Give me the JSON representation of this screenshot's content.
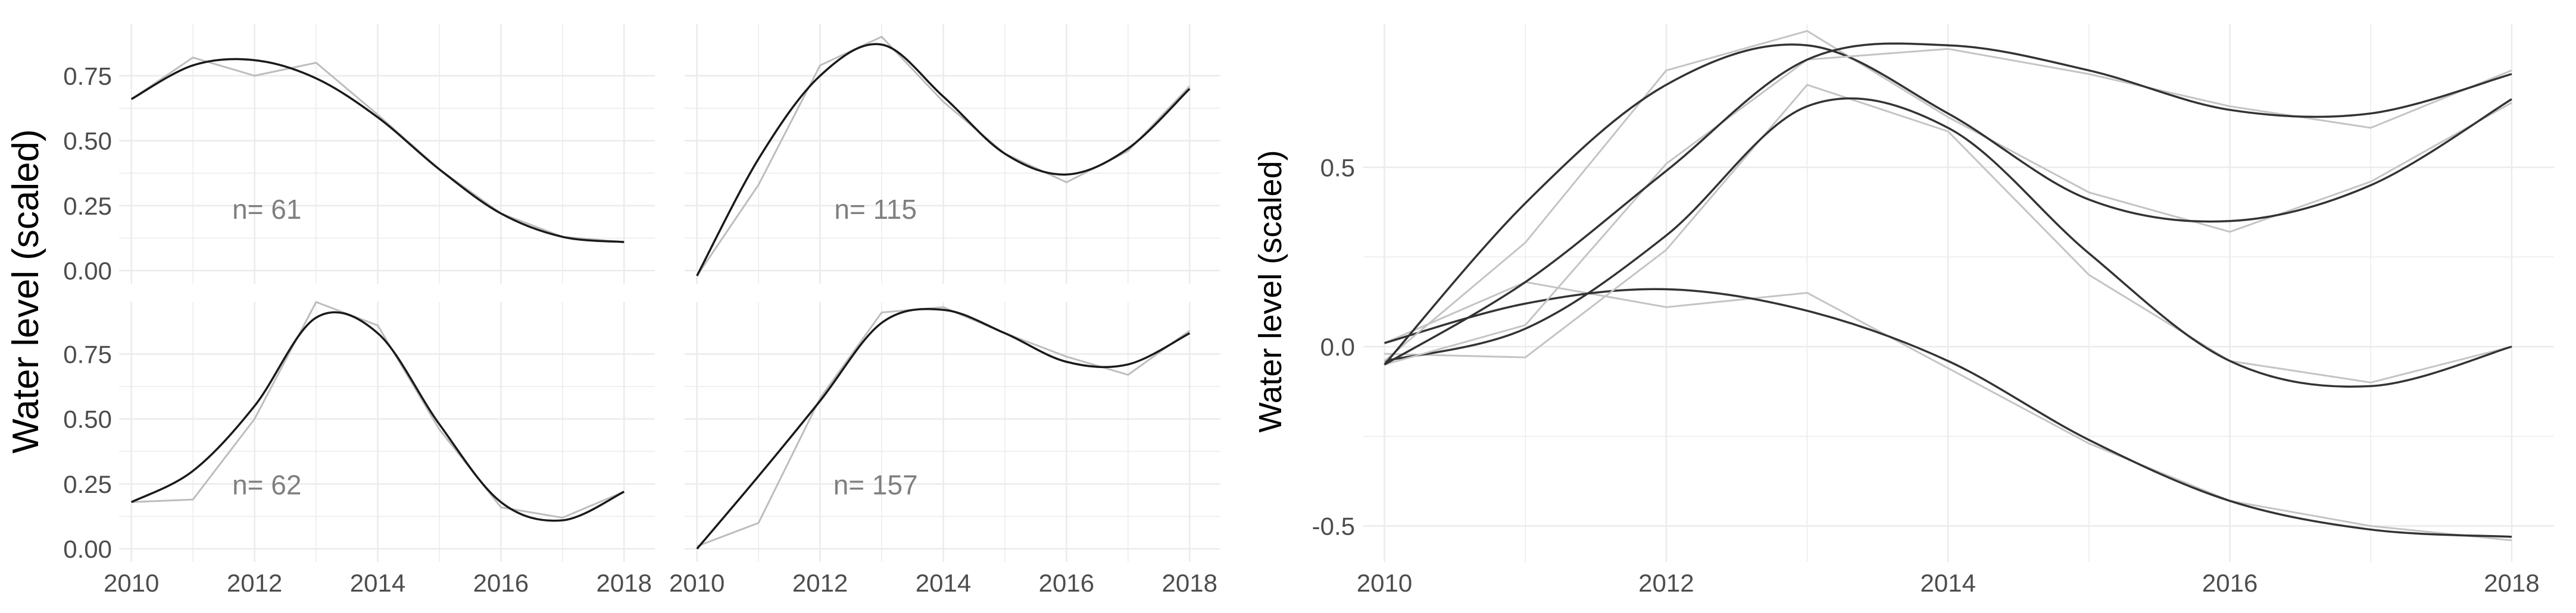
{
  "chart_data": [
    {
      "type": "line",
      "layout": "facets-2x2",
      "ylabel": "Water level (scaled)",
      "x_ticks": [
        "2010",
        "2012",
        "2014",
        "2016",
        "2018"
      ],
      "y_ticks": [
        "0.00",
        "0.25",
        "0.50",
        "0.75"
      ],
      "xlim": [
        2009.8,
        2018.5
      ],
      "ylim": [
        -0.05,
        0.95
      ],
      "grid": true,
      "colors": {
        "raw": "#bdbdbd",
        "smooth": "#1a1a1a",
        "grid": "#ebebeb"
      },
      "panels": [
        {
          "label": "n= 61",
          "raw": {
            "x": [
              2010,
              2011,
              2012,
              2013,
              2014,
              2015,
              2016,
              2017,
              2018
            ],
            "y": [
              0.66,
              0.82,
              0.75,
              0.8,
              0.6,
              0.39,
              0.22,
              0.13,
              0.11
            ]
          },
          "smooth": {
            "x": [
              2010,
              2011,
              2012,
              2013,
              2014,
              2015,
              2016,
              2017,
              2018
            ],
            "y": [
              0.66,
              0.79,
              0.81,
              0.74,
              0.59,
              0.39,
              0.22,
              0.13,
              0.11
            ]
          }
        },
        {
          "label": "n= 115",
          "raw": {
            "x": [
              2010,
              2011,
              2012,
              2013,
              2014,
              2015,
              2016,
              2017,
              2018
            ],
            "y": [
              -0.02,
              0.33,
              0.79,
              0.9,
              0.65,
              0.45,
              0.34,
              0.46,
              0.71
            ]
          },
          "smooth": {
            "x": [
              2010,
              2011,
              2012,
              2013,
              2014,
              2015,
              2016,
              2017,
              2018
            ],
            "y": [
              -0.02,
              0.43,
              0.75,
              0.87,
              0.67,
              0.45,
              0.37,
              0.47,
              0.7
            ]
          }
        },
        {
          "label": "n= 62",
          "raw": {
            "x": [
              2010,
              2011,
              2012,
              2013,
              2014,
              2015,
              2016,
              2017,
              2018
            ],
            "y": [
              0.18,
              0.19,
              0.5,
              0.95,
              0.86,
              0.46,
              0.16,
              0.12,
              0.22
            ]
          },
          "smooth": {
            "x": [
              2010,
              2011,
              2012,
              2013,
              2014,
              2015,
              2016,
              2017,
              2018
            ],
            "y": [
              0.18,
              0.3,
              0.55,
              0.89,
              0.83,
              0.48,
              0.18,
              0.11,
              0.22
            ]
          }
        },
        {
          "label": "n= 157",
          "raw": {
            "x": [
              2010,
              2011,
              2012,
              2013,
              2014,
              2015,
              2016,
              2017,
              2018
            ],
            "y": [
              0.01,
              0.1,
              0.58,
              0.91,
              0.93,
              0.83,
              0.74,
              0.67,
              0.84
            ]
          },
          "smooth": {
            "x": [
              2010,
              2011,
              2012,
              2013,
              2014,
              2015,
              2016,
              2017,
              2018
            ],
            "y": [
              0.0,
              0.28,
              0.57,
              0.87,
              0.92,
              0.83,
              0.72,
              0.71,
              0.83
            ]
          }
        }
      ]
    },
    {
      "type": "line",
      "ylabel": "Water level (scaled)",
      "x_ticks": [
        "2010",
        "2012",
        "2014",
        "2016",
        "2018"
      ],
      "y_ticks": [
        "-0.5",
        "0.0",
        "0.5"
      ],
      "xlim": [
        2009.85,
        2018.3
      ],
      "ylim": [
        -0.6,
        0.9
      ],
      "grid": true,
      "colors": {
        "raw": "#c4c4c4",
        "smooth": "#333333",
        "grid": "#ebebeb"
      },
      "series": [
        {
          "raw": {
            "x": [
              2010,
              2011,
              2012,
              2013,
              2014,
              2015,
              2016,
              2017,
              2018
            ],
            "y": [
              0.01,
              0.18,
              0.11,
              0.15,
              -0.06,
              -0.27,
              -0.43,
              -0.5,
              -0.54
            ]
          },
          "smooth": {
            "x": [
              2010,
              2011,
              2012,
              2013,
              2014,
              2015,
              2016,
              2017,
              2018
            ],
            "y": [
              0.01,
              0.12,
              0.16,
              0.1,
              -0.04,
              -0.26,
              -0.43,
              -0.51,
              -0.53
            ]
          }
        },
        {
          "raw": {
            "x": [
              2010,
              2011,
              2012,
              2013,
              2014,
              2015,
              2016,
              2017,
              2018
            ],
            "y": [
              -0.02,
              -0.03,
              0.27,
              0.73,
              0.6,
              0.2,
              -0.04,
              -0.1,
              0.0
            ]
          },
          "smooth": {
            "x": [
              2010,
              2011,
              2012,
              2013,
              2014,
              2015,
              2016,
              2017,
              2018
            ],
            "y": [
              -0.04,
              0.05,
              0.31,
              0.67,
              0.61,
              0.26,
              -0.04,
              -0.11,
              0.0
            ]
          }
        },
        {
          "raw": {
            "x": [
              2010,
              2011,
              2012,
              2013,
              2014,
              2015,
              2016,
              2017,
              2018
            ],
            "y": [
              -0.04,
              0.29,
              0.77,
              0.88,
              0.64,
              0.43,
              0.32,
              0.46,
              0.68
            ]
          },
          "smooth": {
            "x": [
              2010,
              2011,
              2012,
              2013,
              2014,
              2015,
              2016,
              2017,
              2018
            ],
            "y": [
              -0.05,
              0.4,
              0.73,
              0.84,
              0.65,
              0.41,
              0.35,
              0.45,
              0.69
            ]
          }
        },
        {
          "raw": {
            "x": [
              2010,
              2011,
              2012,
              2013,
              2014,
              2015,
              2016,
              2017,
              2018
            ],
            "y": [
              -0.05,
              0.06,
              0.51,
              0.8,
              0.83,
              0.76,
              0.67,
              0.61,
              0.77
            ]
          },
          "smooth": {
            "x": [
              2010,
              2011,
              2012,
              2013,
              2014,
              2015,
              2016,
              2017,
              2018
            ],
            "y": [
              -0.05,
              0.18,
              0.49,
              0.8,
              0.84,
              0.77,
              0.66,
              0.65,
              0.76
            ]
          }
        }
      ]
    }
  ]
}
